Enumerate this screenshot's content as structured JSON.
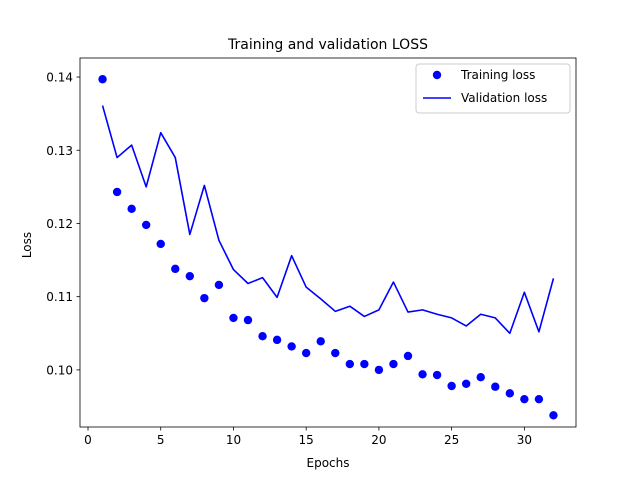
{
  "chart_data": {
    "type": "line",
    "title": "Training and validation LOSS",
    "xlabel": "Epochs",
    "ylabel": "Loss",
    "xlim": [
      -0.55,
      33.55
    ],
    "ylim": [
      0.0922,
      0.1426
    ],
    "xticks": [
      0,
      5,
      10,
      15,
      20,
      25,
      30
    ],
    "yticks": [
      0.1,
      0.11,
      0.12,
      0.13,
      0.14
    ],
    "ytick_labels": [
      "0.10",
      "0.11",
      "0.12",
      "0.13",
      "0.14"
    ],
    "x": [
      1,
      2,
      3,
      4,
      5,
      6,
      7,
      8,
      9,
      10,
      11,
      12,
      13,
      14,
      15,
      16,
      17,
      18,
      19,
      20,
      21,
      22,
      23,
      24,
      25,
      26,
      27,
      28,
      29,
      30,
      31,
      32
    ],
    "grid": false,
    "legend_position": "top-right",
    "series": [
      {
        "name": "Training loss",
        "style": "markers",
        "color": "#0000ff",
        "values": [
          0.1397,
          0.1243,
          0.122,
          0.1198,
          0.1172,
          0.1138,
          0.1128,
          0.1098,
          0.1116,
          0.1071,
          0.1068,
          0.1046,
          0.1041,
          0.1032,
          0.1023,
          0.1039,
          0.1023,
          0.1008,
          0.1008,
          0.1,
          0.1008,
          0.1019,
          0.0994,
          0.0993,
          0.0978,
          0.0981,
          0.099,
          0.0977,
          0.0968,
          0.096,
          0.096,
          0.0938
        ]
      },
      {
        "name": "Validation loss",
        "style": "line",
        "color": "#0000ff",
        "values": [
          0.1361,
          0.129,
          0.1307,
          0.125,
          0.1324,
          0.129,
          0.1185,
          0.1252,
          0.1177,
          0.1137,
          0.1118,
          0.1126,
          0.1099,
          0.1156,
          0.1113,
          0.1097,
          0.108,
          0.1087,
          0.1073,
          0.1082,
          0.112,
          0.1079,
          0.1082,
          0.1076,
          0.1071,
          0.106,
          0.1076,
          0.1071,
          0.105,
          0.1106,
          0.1052,
          0.1125
        ]
      }
    ]
  }
}
